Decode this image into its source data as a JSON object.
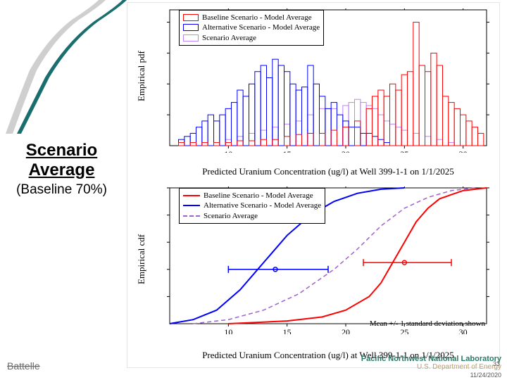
{
  "title": {
    "line1": "Scenario",
    "line2": "Average",
    "sub": "(Baseline 70%)"
  },
  "colors": {
    "baseline": "#ff0000",
    "alternative": "#0000ff",
    "scenario": "#c080ff",
    "scenario_dash": "#a060d0",
    "accent_teal": "#1a6e6e",
    "accent_gray": "#c0c0c0",
    "axis": "#000000",
    "bg": "#ffffff"
  },
  "pdf_chart": {
    "type": "histogram",
    "ylabel": "Empirical pdf",
    "xlabel": "Predicted Uranium Concentration (ug/l) at Well 399-1-1 on 1/1/2025",
    "xlim": [
      5,
      32
    ],
    "ylim": [
      0,
      0.22
    ],
    "yticks": [
      0.05,
      0.1,
      0.15,
      0.2
    ],
    "xticks": [
      10,
      15,
      20,
      25,
      30
    ],
    "legend": [
      {
        "label": "Baseline Scenario - Model Average",
        "color": "#ff0000",
        "style": "outline"
      },
      {
        "label": "Alternative Scenario - Model Average",
        "color": "#0000ff",
        "style": "outline"
      },
      {
        "label": "Scenario Average",
        "color": "#c080ff",
        "style": "outline"
      }
    ],
    "bin_width": 0.5,
    "series_baseline": {
      "color": "#ff0000",
      "bins": [
        [
          6,
          0.005
        ],
        [
          7,
          0.005
        ],
        [
          8,
          0.005
        ],
        [
          9,
          0.005
        ],
        [
          10,
          0.005
        ],
        [
          11,
          0.008
        ],
        [
          12,
          0.008
        ],
        [
          13,
          0.01
        ],
        [
          14,
          0.01
        ],
        [
          15,
          0.015
        ],
        [
          16,
          0.018
        ],
        [
          17,
          0.02
        ],
        [
          18,
          0.02
        ],
        [
          19,
          0.025
        ],
        [
          20,
          0.03
        ],
        [
          21,
          0.04
        ],
        [
          22,
          0.06
        ],
        [
          22.5,
          0.08
        ],
        [
          23,
          0.09
        ],
        [
          23.5,
          0.08
        ],
        [
          24,
          0.1
        ],
        [
          24.5,
          0.09
        ],
        [
          25,
          0.115
        ],
        [
          25.5,
          0.12
        ],
        [
          26,
          0.2
        ],
        [
          26.5,
          0.13
        ],
        [
          27,
          0.12
        ],
        [
          27.5,
          0.15
        ],
        [
          28,
          0.13
        ],
        [
          28.5,
          0.08
        ],
        [
          29,
          0.07
        ],
        [
          29.5,
          0.06
        ],
        [
          30,
          0.05
        ],
        [
          30.5,
          0.04
        ],
        [
          31,
          0.03
        ],
        [
          31.5,
          0.02
        ]
      ]
    },
    "series_alternative": {
      "color": "#0000ff",
      "bins": [
        [
          6,
          0.01
        ],
        [
          6.5,
          0.015
        ],
        [
          7,
          0.02
        ],
        [
          7.5,
          0.03
        ],
        [
          8,
          0.04
        ],
        [
          8.5,
          0.05
        ],
        [
          9,
          0.04
        ],
        [
          9.5,
          0.05
        ],
        [
          10,
          0.06
        ],
        [
          10.5,
          0.07
        ],
        [
          11,
          0.09
        ],
        [
          11.5,
          0.08
        ],
        [
          12,
          0.1
        ],
        [
          12.5,
          0.12
        ],
        [
          13,
          0.13
        ],
        [
          13.5,
          0.11
        ],
        [
          14,
          0.14
        ],
        [
          14.5,
          0.13
        ],
        [
          15,
          0.12
        ],
        [
          15.5,
          0.1
        ],
        [
          16,
          0.09
        ],
        [
          16.5,
          0.095
        ],
        [
          17,
          0.13
        ],
        [
          17.5,
          0.1
        ],
        [
          18,
          0.08
        ],
        [
          18.5,
          0.06
        ],
        [
          19,
          0.07
        ],
        [
          19.5,
          0.05
        ],
        [
          20,
          0.04
        ],
        [
          20.5,
          0.03
        ],
        [
          21,
          0.03
        ],
        [
          21.5,
          0.02
        ],
        [
          22,
          0.02
        ],
        [
          22.5,
          0.015
        ],
        [
          23,
          0.01
        ],
        [
          23.5,
          0.005
        ]
      ]
    },
    "series_scenario": {
      "color": "#c080ff",
      "bins": [
        [
          10,
          0.01
        ],
        [
          11,
          0.015
        ],
        [
          12,
          0.02
        ],
        [
          13,
          0.025
        ],
        [
          14,
          0.03
        ],
        [
          15,
          0.035
        ],
        [
          16,
          0.04
        ],
        [
          17,
          0.05
        ],
        [
          18,
          0.06
        ],
        [
          19,
          0.06
        ],
        [
          20,
          0.065
        ],
        [
          20.5,
          0.07
        ],
        [
          21,
          0.075
        ],
        [
          21.5,
          0.07
        ],
        [
          22,
          0.065
        ],
        [
          22.5,
          0.06
        ],
        [
          23,
          0.05
        ],
        [
          23.5,
          0.04
        ],
        [
          24,
          0.035
        ],
        [
          24.5,
          0.03
        ],
        [
          25,
          0.025
        ],
        [
          26,
          0.02
        ],
        [
          27,
          0.015
        ],
        [
          28,
          0.01
        ],
        [
          29,
          0.005
        ]
      ]
    }
  },
  "cdf_chart": {
    "type": "line",
    "ylabel": "Empirical cdf",
    "xlabel": "Predicted Uranium Concentration (ug/l) at Well 399-1-1 on 1/1/2025",
    "xlim": [
      5,
      32
    ],
    "ylim": [
      0,
      1.0
    ],
    "yticks": [
      0.2,
      0.4,
      0.6,
      0.8,
      1.0
    ],
    "xticks": [
      10,
      15,
      20,
      25,
      30
    ],
    "note": "Mean +/- 1 standard deviation shown",
    "legend": [
      {
        "label": "Baseline Scenario - Model Average",
        "color": "#ff0000",
        "style": "solid"
      },
      {
        "label": "Alternative Scenario - Model Average",
        "color": "#0000ff",
        "style": "solid"
      },
      {
        "label": "Scenario Average",
        "color": "#a060d0",
        "style": "dash"
      }
    ],
    "series_baseline": {
      "color": "#ff0000",
      "width": 2,
      "dash": "none",
      "points": [
        [
          10,
          0.0
        ],
        [
          15,
          0.02
        ],
        [
          18,
          0.05
        ],
        [
          20,
          0.1
        ],
        [
          22,
          0.2
        ],
        [
          23,
          0.3
        ],
        [
          24,
          0.45
        ],
        [
          25,
          0.6
        ],
        [
          26,
          0.75
        ],
        [
          27,
          0.85
        ],
        [
          28,
          0.92
        ],
        [
          30,
          0.98
        ],
        [
          32,
          1.0
        ]
      ],
      "mean": 25.0,
      "sd_low": 21.5,
      "sd_high": 29.0,
      "marker_y": 0.45
    },
    "series_alternative": {
      "color": "#0000ff",
      "width": 2,
      "dash": "none",
      "points": [
        [
          5,
          0.0
        ],
        [
          7,
          0.03
        ],
        [
          9,
          0.1
        ],
        [
          11,
          0.25
        ],
        [
          13,
          0.45
        ],
        [
          15,
          0.65
        ],
        [
          17,
          0.8
        ],
        [
          19,
          0.9
        ],
        [
          21,
          0.96
        ],
        [
          23,
          0.99
        ],
        [
          25,
          1.0
        ]
      ],
      "mean": 14.0,
      "sd_low": 10.0,
      "sd_high": 18.5,
      "marker_y": 0.4
    },
    "series_scenario": {
      "color": "#a060d0",
      "width": 1.5,
      "dash": "6,4",
      "points": [
        [
          7,
          0.0
        ],
        [
          10,
          0.03
        ],
        [
          13,
          0.1
        ],
        [
          16,
          0.22
        ],
        [
          19,
          0.4
        ],
        [
          21,
          0.55
        ],
        [
          23,
          0.72
        ],
        [
          25,
          0.85
        ],
        [
          27,
          0.93
        ],
        [
          29,
          0.98
        ],
        [
          31,
          1.0
        ]
      ]
    }
  },
  "footer": {
    "left": "Battelle",
    "lab": "Pacific Northwest National Laboratory",
    "energy": "U.S. Department of Energy",
    "date": "11/24/2020",
    "page": "33"
  }
}
